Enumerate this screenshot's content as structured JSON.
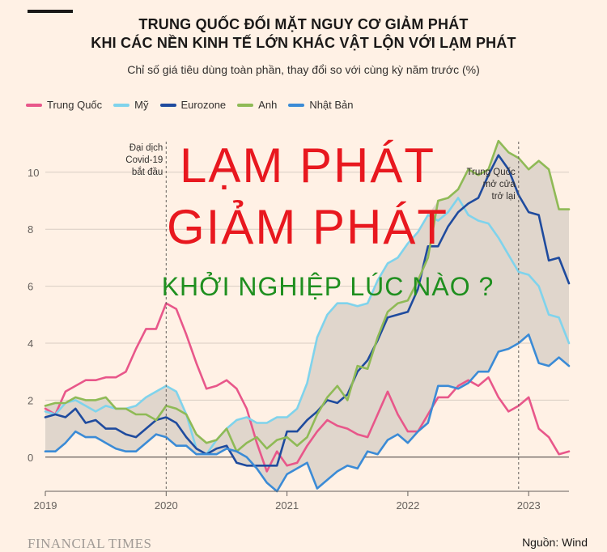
{
  "header": {
    "title_line1": "TRUNG QUỐC ĐỐI MẶT NGUY CƠ GIẢM PHÁT",
    "title_line2": "KHI CÁC NỀN KINH TẾ LỚN KHÁC VẬT LỘN VỚI LẠM PHÁT",
    "subtitle": "Chỉ số giá tiêu dùng toàn phần, thay đổi so với cùng kỳ năm trước (%)"
  },
  "footer": {
    "brand": "FINANCIAL TIMES",
    "source": "Nguồn: Wind"
  },
  "overlay": {
    "line1": "LẠM PHÁT",
    "line2": "GIẢM PHÁT",
    "line3": "KHỞI NGHIỆP LÚC NÀO ?"
  },
  "colors": {
    "background": "#fff1e5",
    "band": "#e0d6cc",
    "overlay_red": "#e8181f",
    "overlay_green": "#1f8f1f"
  },
  "chart_data": {
    "type": "line",
    "title": "TRUNG QUỐC ĐỐI MẶT NGUY CƠ GIẢM PHÁT KHI CÁC NỀN KINH TẾ LỚN KHÁC VẬT LỘN VỚI LẠM PHÁT",
    "subtitle": "Chỉ số giá tiêu dùng toàn phần, thay đổi so với cùng kỳ năm trước (%)",
    "xlabel": "",
    "ylabel": "",
    "x_ticks": [
      "2019",
      "2020",
      "2021",
      "2022",
      "2023"
    ],
    "y_ticks": [
      0,
      2,
      4,
      6,
      8,
      10
    ],
    "ylim": [
      -1.2,
      11.5
    ],
    "xlim": [
      "2019-01",
      "2023-05"
    ],
    "grid": true,
    "legend_position": "top-left",
    "x": [
      "2019-01",
      "2019-02",
      "2019-03",
      "2019-04",
      "2019-05",
      "2019-06",
      "2019-07",
      "2019-08",
      "2019-09",
      "2019-10",
      "2019-11",
      "2019-12",
      "2020-01",
      "2020-02",
      "2020-03",
      "2020-04",
      "2020-05",
      "2020-06",
      "2020-07",
      "2020-08",
      "2020-09",
      "2020-10",
      "2020-11",
      "2020-12",
      "2021-01",
      "2021-02",
      "2021-03",
      "2021-04",
      "2021-05",
      "2021-06",
      "2021-07",
      "2021-08",
      "2021-09",
      "2021-10",
      "2021-11",
      "2021-12",
      "2022-01",
      "2022-02",
      "2022-03",
      "2022-04",
      "2022-05",
      "2022-06",
      "2022-07",
      "2022-08",
      "2022-09",
      "2022-10",
      "2022-11",
      "2022-12",
      "2023-01",
      "2023-02",
      "2023-03",
      "2023-04",
      "2023-05"
    ],
    "series": [
      {
        "name": "Trung Quốc",
        "color": "#e8578a",
        "values": [
          1.7,
          1.5,
          2.3,
          2.5,
          2.7,
          2.7,
          2.8,
          2.8,
          3.0,
          3.8,
          4.5,
          4.5,
          5.4,
          5.2,
          4.3,
          3.3,
          2.4,
          2.5,
          2.7,
          2.4,
          1.7,
          0.5,
          -0.5,
          0.2,
          -0.3,
          -0.2,
          0.4,
          0.9,
          1.3,
          1.1,
          1.0,
          0.8,
          0.7,
          1.5,
          2.3,
          1.5,
          0.9,
          0.9,
          1.5,
          2.1,
          2.1,
          2.5,
          2.7,
          2.5,
          2.8,
          2.1,
          1.6,
          1.8,
          2.1,
          1.0,
          0.7,
          0.1,
          0.2
        ]
      },
      {
        "name": "Mỹ",
        "color": "#7fd3ec",
        "values": [
          1.6,
          1.5,
          1.9,
          2.0,
          1.8,
          1.6,
          1.8,
          1.7,
          1.7,
          1.8,
          2.1,
          2.3,
          2.5,
          2.3,
          1.5,
          0.3,
          0.1,
          0.6,
          1.0,
          1.3,
          1.4,
          1.2,
          1.2,
          1.4,
          1.4,
          1.7,
          2.6,
          4.2,
          5.0,
          5.4,
          5.4,
          5.3,
          5.4,
          6.2,
          6.8,
          7.0,
          7.5,
          7.9,
          8.5,
          8.3,
          8.6,
          9.1,
          8.5,
          8.3,
          8.2,
          7.7,
          7.1,
          6.5,
          6.4,
          6.0,
          5.0,
          4.9,
          4.0
        ]
      },
      {
        "name": "Eurozone",
        "color": "#1f4b9e",
        "values": [
          1.4,
          1.5,
          1.4,
          1.7,
          1.2,
          1.3,
          1.0,
          1.0,
          0.8,
          0.7,
          1.0,
          1.3,
          1.4,
          1.2,
          0.7,
          0.3,
          0.1,
          0.3,
          0.4,
          -0.2,
          -0.3,
          -0.3,
          -0.3,
          -0.3,
          0.9,
          0.9,
          1.3,
          1.6,
          2.0,
          1.9,
          2.2,
          3.0,
          3.4,
          4.1,
          4.9,
          5.0,
          5.1,
          5.9,
          7.4,
          7.4,
          8.1,
          8.6,
          8.9,
          9.1,
          9.9,
          10.6,
          10.1,
          9.2,
          8.6,
          8.5,
          6.9,
          7.0,
          6.1
        ]
      },
      {
        "name": "Anh",
        "color": "#8fba56",
        "values": [
          1.8,
          1.9,
          1.9,
          2.1,
          2.0,
          2.0,
          2.1,
          1.7,
          1.7,
          1.5,
          1.5,
          1.3,
          1.8,
          1.7,
          1.5,
          0.8,
          0.5,
          0.6,
          1.0,
          0.2,
          0.5,
          0.7,
          0.3,
          0.6,
          0.7,
          0.4,
          0.7,
          1.5,
          2.1,
          2.5,
          2.0,
          3.2,
          3.1,
          4.2,
          5.1,
          5.4,
          5.5,
          6.2,
          7.0,
          9.0,
          9.1,
          9.4,
          10.1,
          9.9,
          10.1,
          11.1,
          10.7,
          10.5,
          10.1,
          10.4,
          10.1,
          8.7,
          8.7
        ]
      },
      {
        "name": "Nhật Bản",
        "color": "#3b8bd6",
        "values": [
          0.2,
          0.2,
          0.5,
          0.9,
          0.7,
          0.7,
          0.5,
          0.3,
          0.2,
          0.2,
          0.5,
          0.8,
          0.7,
          0.4,
          0.4,
          0.1,
          0.1,
          0.1,
          0.3,
          0.2,
          0.0,
          -0.4,
          -0.9,
          -1.2,
          -0.6,
          -0.4,
          -0.2,
          -1.1,
          -0.8,
          -0.5,
          -0.3,
          -0.4,
          0.2,
          0.1,
          0.6,
          0.8,
          0.5,
          0.9,
          1.2,
          2.5,
          2.5,
          2.4,
          2.6,
          3.0,
          3.0,
          3.7,
          3.8,
          4.0,
          4.3,
          3.3,
          3.2,
          3.5,
          3.2
        ]
      }
    ],
    "band": {
      "between": [
        "max",
        "min"
      ],
      "from_series": [
        "Mỹ",
        "Eurozone",
        "Anh",
        "Nhật Bản"
      ]
    },
    "annotations": [
      {
        "text_lines": [
          "Đại dịch",
          "Covid-19",
          "bắt đầu"
        ],
        "x": "2020-01"
      },
      {
        "text_lines": [
          "Trung Quốc",
          "mở cửa",
          "trở lại"
        ],
        "x": "2022-12"
      }
    ]
  }
}
